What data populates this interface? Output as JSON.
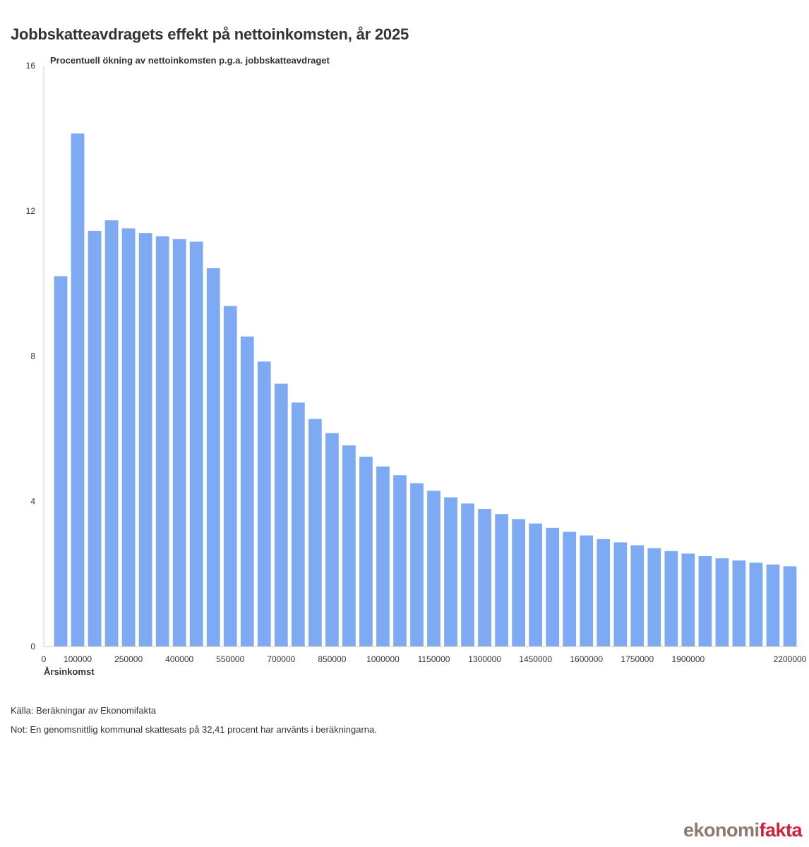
{
  "title": "Jobbskatteavdragets effekt på nettoinkomsten, år 2025",
  "source": "Källa: Beräkningar av Ekonomifakta",
  "note": "Not: En genomsnittlig kommunal skattesats på 32,41 procent har använts i beräkningarna.",
  "logo": {
    "part1": "ekonomi",
    "part2": "fakta"
  },
  "chart_data": {
    "type": "bar",
    "title": "Jobbskatteavdragets effekt på nettoinkomsten, år 2025",
    "ylabel": "Procentuell ökning av nettoinkomsten p.g.a. jobbskatteavdraget",
    "xlabel": "Årsinkomst",
    "ylim": [
      0,
      16
    ],
    "yticks": [
      0,
      4,
      8,
      12,
      16
    ],
    "xlim": [
      0,
      2225000
    ],
    "xticks": [
      {
        "value": 0,
        "label": "0"
      },
      {
        "value": 100000,
        "label": "100000"
      },
      {
        "value": 250000,
        "label": "250000"
      },
      {
        "value": 400000,
        "label": "400000"
      },
      {
        "value": 550000,
        "label": "550000"
      },
      {
        "value": 700000,
        "label": "700000"
      },
      {
        "value": 850000,
        "label": "850000"
      },
      {
        "value": 1000000,
        "label": "1000000"
      },
      {
        "value": 1150000,
        "label": "1150000"
      },
      {
        "value": 1300000,
        "label": "1300000"
      },
      {
        "value": 1450000,
        "label": "1450000"
      },
      {
        "value": 1600000,
        "label": "1600000"
      },
      {
        "value": 1750000,
        "label": "1750000"
      },
      {
        "value": 1900000,
        "label": "1900000"
      },
      {
        "value": 2200000,
        "label": "2200000"
      }
    ],
    "color": "#7eaaf3",
    "x": [
      50000,
      100000,
      150000,
      200000,
      250000,
      300000,
      350000,
      400000,
      450000,
      500000,
      550000,
      600000,
      650000,
      700000,
      750000,
      800000,
      850000,
      900000,
      950000,
      1000000,
      1050000,
      1100000,
      1150000,
      1200000,
      1250000,
      1300000,
      1350000,
      1400000,
      1450000,
      1500000,
      1550000,
      1600000,
      1650000,
      1700000,
      1750000,
      1800000,
      1850000,
      1900000,
      1950000,
      2000000,
      2050000,
      2100000,
      2150000,
      2200000
    ],
    "values": [
      10.2,
      14.13,
      11.45,
      11.74,
      11.52,
      11.39,
      11.3,
      11.22,
      11.15,
      10.42,
      9.38,
      8.54,
      7.85,
      7.24,
      6.72,
      6.27,
      5.88,
      5.54,
      5.23,
      4.96,
      4.72,
      4.5,
      4.29,
      4.11,
      3.94,
      3.79,
      3.65,
      3.51,
      3.39,
      3.27,
      3.16,
      3.06,
      2.96,
      2.87,
      2.79,
      2.71,
      2.63,
      2.56,
      2.49,
      2.43,
      2.37,
      2.31,
      2.26,
      2.21
    ]
  }
}
